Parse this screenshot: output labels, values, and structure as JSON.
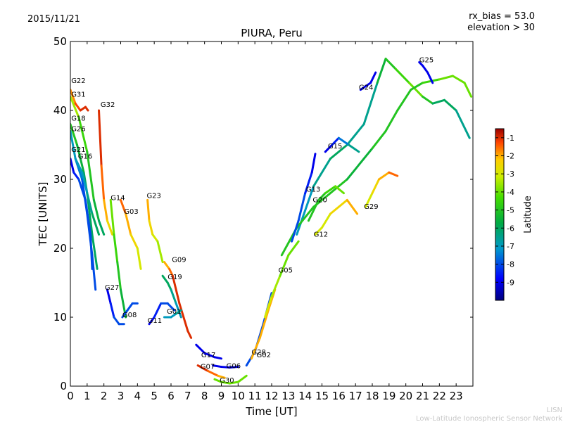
{
  "header": {
    "date": "2015/11/21",
    "rx_bias": "rx_bias = 53.0",
    "elevation": "elevation > 30"
  },
  "footer": {
    "org_short": "LISN",
    "org_long": "Low-Latitude Ionospheric Sensor Network"
  },
  "chart_data": {
    "type": "line",
    "title": "PIURA, Peru",
    "xlabel": "Time [UT]",
    "ylabel": "TEC [UNITS]",
    "xlim": [
      0,
      24
    ],
    "ylim": [
      0,
      50
    ],
    "xticks": [
      "0",
      "1",
      "2",
      "3",
      "4",
      "5",
      "6",
      "7",
      "8",
      "9",
      "10",
      "11",
      "12",
      "13",
      "14",
      "15",
      "16",
      "17",
      "18",
      "19",
      "20",
      "21",
      "22",
      "23"
    ],
    "yticks": [
      "0",
      "10",
      "20",
      "30",
      "40",
      "50"
    ],
    "colorbar": {
      "label": "Latitude",
      "range": [
        -10,
        -0.5
      ],
      "ticks": [
        "-1",
        "-2",
        "-3",
        "-4",
        "-5",
        "-6",
        "-7",
        "-8",
        "-9"
      ]
    },
    "series": [
      {
        "name": "G22",
        "label_at": [
          0.05,
          44
        ],
        "points": [
          [
            0,
            43
          ],
          [
            0.3,
            41
          ],
          [
            0.6,
            40
          ],
          [
            0.9,
            40.5
          ],
          [
            1.05,
            40
          ]
        ],
        "lat": [
          -2,
          -1.5,
          -1,
          -1,
          -1
        ]
      },
      {
        "name": "G31",
        "label_at": [
          0.05,
          42
        ],
        "points": [
          [
            0,
            42
          ],
          [
            0.5,
            39
          ],
          [
            1,
            34
          ],
          [
            1.4,
            27
          ],
          [
            1.7,
            24
          ],
          [
            2,
            22
          ]
        ],
        "lat": [
          -3,
          -4,
          -5,
          -5,
          -6,
          -6
        ]
      },
      {
        "name": "G32",
        "label_at": [
          1.8,
          40.5
        ],
        "points": [
          [
            1.7,
            40
          ],
          [
            1.85,
            32
          ],
          [
            2,
            27
          ],
          [
            2.2,
            24
          ],
          [
            2.5,
            22
          ]
        ],
        "lat": [
          -1,
          -1,
          -2,
          -2,
          -3
        ]
      },
      {
        "name": "G18",
        "label_at": [
          0.05,
          38.5
        ],
        "points": [
          [
            0,
            38
          ],
          [
            0.4,
            35
          ],
          [
            0.8,
            31
          ],
          [
            1,
            28
          ],
          [
            1.3,
            22
          ],
          [
            1.6,
            17
          ]
        ],
        "lat": [
          -5,
          -5,
          -6,
          -6,
          -6,
          -6
        ]
      },
      {
        "name": "G26",
        "label_at": [
          0.05,
          37
        ],
        "points": [
          [
            0,
            37
          ],
          [
            0.3,
            33
          ],
          [
            0.7,
            30
          ],
          [
            1,
            25
          ],
          [
            1.3,
            19
          ],
          [
            1.5,
            14
          ]
        ],
        "lat": [
          -7,
          -7,
          -8,
          -8,
          -8,
          -8
        ]
      },
      {
        "name": "G21",
        "label_at": [
          0.05,
          34
        ],
        "points": [
          [
            0,
            33
          ],
          [
            0.2,
            31
          ],
          [
            0.5,
            30
          ],
          [
            0.9,
            27
          ],
          [
            1.2,
            22
          ],
          [
            1.3,
            17
          ]
        ],
        "lat": [
          -9,
          -9,
          -8,
          -8,
          -8,
          -8
        ]
      },
      {
        "name": "G16",
        "label_at": [
          0.45,
          33
        ],
        "points": [
          [
            0.3,
            33
          ],
          [
            0.7,
            31
          ],
          [
            1,
            28
          ],
          [
            1.3,
            25
          ],
          [
            1.7,
            22
          ]
        ],
        "lat": [
          -7,
          -7,
          -7,
          -6,
          -6
        ]
      },
      {
        "name": "G14",
        "label_at": [
          2.4,
          27
        ],
        "points": [
          [
            2.4,
            27
          ],
          [
            2.6,
            22
          ],
          [
            2.8,
            18
          ],
          [
            3,
            14
          ],
          [
            3.3,
            10
          ]
        ],
        "lat": [
          -4,
          -4,
          -5,
          -5,
          -6
        ]
      },
      {
        "name": "G03",
        "label_at": [
          3.2,
          25
        ],
        "points": [
          [
            3,
            27
          ],
          [
            3.3,
            25
          ],
          [
            3.6,
            22
          ],
          [
            4,
            20
          ],
          [
            4.2,
            17
          ]
        ],
        "lat": [
          -1,
          -2,
          -2,
          -3,
          -3
        ]
      },
      {
        "name": "G23",
        "label_at": [
          4.55,
          27.3
        ],
        "points": [
          [
            4.6,
            27
          ],
          [
            4.7,
            24
          ],
          [
            4.9,
            22
          ],
          [
            5.2,
            21
          ],
          [
            5.5,
            18
          ]
        ],
        "lat": [
          -2,
          -2,
          -3,
          -3,
          -4
        ]
      },
      {
        "name": "G09",
        "label_at": [
          6.05,
          18
        ],
        "points": [
          [
            5.6,
            18
          ],
          [
            5.9,
            17
          ],
          [
            6.1,
            16
          ],
          [
            6.5,
            12
          ],
          [
            7,
            8
          ],
          [
            7.2,
            7
          ]
        ],
        "lat": [
          -2,
          -2,
          -1,
          -1,
          -1,
          -1
        ]
      },
      {
        "name": "G19",
        "label_at": [
          5.8,
          15.5
        ],
        "points": [
          [
            5.5,
            16
          ],
          [
            5.8,
            15
          ],
          [
            6,
            14
          ],
          [
            6.3,
            12
          ],
          [
            6.6,
            10
          ]
        ],
        "lat": [
          -6,
          -6,
          -6,
          -7,
          -7
        ]
      },
      {
        "name": "G27",
        "label_at": [
          2.05,
          14
        ],
        "points": [
          [
            2.2,
            14
          ],
          [
            2.4,
            12
          ],
          [
            2.6,
            10
          ],
          [
            2.9,
            9
          ],
          [
            3.2,
            9
          ]
        ],
        "lat": [
          -9,
          -9,
          -8,
          -8,
          -8
        ]
      },
      {
        "name": "G08",
        "label_at": [
          3.1,
          10
        ],
        "points": [
          [
            3.1,
            10
          ],
          [
            3.4,
            11
          ],
          [
            3.7,
            12
          ],
          [
            4,
            12
          ]
        ],
        "lat": [
          -8,
          -8,
          -8,
          -8
        ]
      },
      {
        "name": "G11",
        "label_at": [
          4.6,
          9.2
        ],
        "points": [
          [
            4.7,
            9
          ],
          [
            5,
            10
          ],
          [
            5.4,
            12
          ],
          [
            5.8,
            12
          ],
          [
            6.2,
            11
          ]
        ],
        "lat": [
          -9,
          -9,
          -8,
          -8,
          -8
        ]
      },
      {
        "name": "G01",
        "label_at": [
          5.75,
          10.5
        ],
        "points": [
          [
            5.6,
            10
          ],
          [
            6,
            10
          ],
          [
            6.3,
            10.5
          ],
          [
            6.6,
            11
          ]
        ],
        "lat": [
          -7,
          -7,
          -7,
          -6
        ]
      },
      {
        "name": "G17",
        "label_at": [
          7.8,
          4.2
        ],
        "points": [
          [
            7.5,
            6
          ],
          [
            8,
            4.8
          ],
          [
            8.6,
            4.2
          ],
          [
            9,
            4
          ]
        ],
        "lat": [
          -9,
          -9,
          -9,
          -9
        ]
      },
      {
        "name": "G07",
        "label_at": [
          7.75,
          2.5
        ],
        "points": [
          [
            7.6,
            3
          ],
          [
            8.2,
            2.2
          ],
          [
            8.8,
            1.5
          ],
          [
            9.2,
            1.2
          ]
        ],
        "lat": [
          -1,
          -1,
          -2,
          -2
        ]
      },
      {
        "name": "G06",
        "label_at": [
          9.3,
          2.6
        ],
        "points": [
          [
            8.5,
            3
          ],
          [
            9,
            2.8
          ],
          [
            9.5,
            2.7
          ],
          [
            10,
            2.8
          ]
        ],
        "lat": [
          -9,
          -9,
          -9,
          -9
        ]
      },
      {
        "name": "G30",
        "label_at": [
          8.9,
          0.5
        ],
        "points": [
          [
            8.6,
            1
          ],
          [
            9,
            0.6
          ],
          [
            9.5,
            0.4
          ],
          [
            10,
            0.6
          ],
          [
            10.5,
            1.5
          ]
        ],
        "lat": [
          -4,
          -4,
          -4,
          -4,
          -4
        ]
      },
      {
        "name": "G28",
        "label_at": [
          10.8,
          4.6
        ],
        "points": [
          [
            10.5,
            3
          ],
          [
            11,
            5
          ],
          [
            11.5,
            9
          ],
          [
            12,
            13.5
          ]
        ],
        "lat": [
          -8,
          -8,
          -8,
          -8
        ]
      },
      {
        "name": "G02",
        "label_at": [
          11.1,
          4.2
        ],
        "points": [
          [
            10.8,
            4
          ],
          [
            11.3,
            7
          ],
          [
            11.8,
            11
          ],
          [
            12.2,
            14
          ]
        ],
        "lat": [
          -2,
          -2,
          -2,
          -2
        ]
      },
      {
        "name": "G05",
        "label_at": [
          12.4,
          16.5
        ],
        "points": [
          [
            11.6,
            10
          ],
          [
            12,
            13
          ],
          [
            12.5,
            16
          ],
          [
            13,
            19
          ],
          [
            13.6,
            21
          ]
        ],
        "lat": [
          -3,
          -3,
          -4,
          -4,
          -4
        ]
      },
      {
        "name": "G13",
        "label_at": [
          14.05,
          28.2
        ],
        "points": [
          [
            13.2,
            21
          ],
          [
            13.6,
            24
          ],
          [
            14,
            28
          ],
          [
            14.4,
            31
          ],
          [
            14.6,
            33.7
          ]
        ],
        "lat": [
          -8,
          -8,
          -8,
          -9,
          -9
        ]
      },
      {
        "name": "G20",
        "label_at": [
          14.45,
          26.7
        ],
        "points": [
          [
            14.2,
            24
          ],
          [
            14.8,
            27
          ],
          [
            15.2,
            28
          ],
          [
            15.8,
            29
          ],
          [
            16.3,
            28
          ]
        ],
        "lat": [
          -5,
          -5,
          -5,
          -4,
          -4
        ]
      },
      {
        "name": "G12",
        "label_at": [
          14.5,
          21.7
        ],
        "points": [
          [
            14.6,
            22
          ],
          [
            15,
            23
          ],
          [
            15.5,
            25
          ],
          [
            16.5,
            27
          ],
          [
            17.1,
            25
          ]
        ],
        "lat": [
          -3,
          -3,
          -3,
          -2,
          -2
        ]
      },
      {
        "name": "G15",
        "label_at": [
          15.35,
          34.5
        ],
        "points": [
          [
            15.2,
            34
          ],
          [
            15.6,
            35
          ],
          [
            16,
            36
          ],
          [
            16.6,
            35
          ],
          [
            17.2,
            34
          ]
        ],
        "lat": [
          -9,
          -9,
          -8,
          -7,
          -6
        ]
      },
      {
        "name": "G29",
        "label_at": [
          17.5,
          25.7
        ],
        "points": [
          [
            17.6,
            26
          ],
          [
            18,
            28
          ],
          [
            18.4,
            30
          ],
          [
            19,
            31
          ],
          [
            19.5,
            30.5
          ]
        ],
        "lat": [
          -3,
          -3,
          -2,
          -2,
          -1
        ]
      },
      {
        "name": "G24",
        "label_at": [
          17.2,
          43
        ],
        "points": [
          [
            17.3,
            43
          ],
          [
            17.6,
            43.5
          ],
          [
            17.9,
            44
          ],
          [
            18.2,
            45.5
          ]
        ],
        "lat": [
          -9,
          -9,
          -9,
          -9
        ]
      },
      {
        "name": "G25",
        "label_at": [
          20.8,
          47
        ],
        "points": [
          [
            20.8,
            47
          ],
          [
            21,
            46.5
          ],
          [
            21.3,
            45.5
          ],
          [
            21.6,
            44
          ]
        ],
        "lat": [
          -9,
          -9,
          -9,
          -9
        ]
      }
    ],
    "background_curves": [
      {
        "points": [
          [
            13.5,
            22
          ],
          [
            14.5,
            29
          ],
          [
            15.5,
            33
          ],
          [
            16.5,
            35
          ],
          [
            17.5,
            38
          ],
          [
            18.3,
            44
          ],
          [
            18.8,
            47.5
          ],
          [
            19.4,
            46
          ],
          [
            20.2,
            44
          ],
          [
            21,
            42
          ],
          [
            21.6,
            41
          ],
          [
            22.3,
            41.5
          ],
          [
            23,
            40
          ],
          [
            23.8,
            36
          ]
        ],
        "lat": [
          -7,
          -7,
          -6,
          -6,
          -7,
          -6,
          -5,
          -5,
          -4,
          -4,
          -6,
          -6,
          -6,
          -7
        ]
      },
      {
        "name": "main-rise",
        "points": [
          [
            12.6,
            19
          ],
          [
            13.5,
            23
          ],
          [
            14.5,
            26
          ],
          [
            15.5,
            28
          ],
          [
            16.5,
            30
          ],
          [
            17.5,
            33
          ],
          [
            18,
            34.5
          ],
          [
            18.8,
            37
          ],
          [
            19.5,
            40
          ],
          [
            20.3,
            43
          ],
          [
            21,
            44
          ],
          [
            22,
            44.5
          ],
          [
            22.8,
            45
          ],
          [
            23.5,
            44
          ],
          [
            23.9,
            42
          ]
        ],
        "lat": [
          -5,
          -5,
          -5,
          -5,
          -5,
          -6,
          -5,
          -5,
          -5,
          -5,
          -5,
          -4,
          -4,
          -4,
          -4
        ]
      }
    ]
  }
}
